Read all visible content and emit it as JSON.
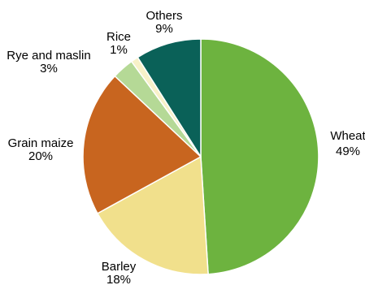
{
  "chart_data": {
    "type": "pie",
    "title": "",
    "slices": [
      {
        "label": "Wheat",
        "value": 49,
        "value_label": "49%",
        "color": "#6db33f"
      },
      {
        "label": "Barley",
        "value": 18,
        "value_label": "18%",
        "color": "#f1e08c"
      },
      {
        "label": "Grain maize",
        "value": 20,
        "value_label": "20%",
        "color": "#c8651f"
      },
      {
        "label": "Rye and maslin",
        "value": 3,
        "value_label": "3%",
        "color": "#b5d996"
      },
      {
        "label": "Rice",
        "value": 1,
        "value_label": "1%",
        "color": "#f8f1c8"
      },
      {
        "label": "Others",
        "value": 9,
        "value_label": "9%",
        "color": "#0a6158"
      }
    ],
    "start_angle_deg": 0,
    "direction": "clockwise",
    "stroke_color": "#ffffff"
  }
}
